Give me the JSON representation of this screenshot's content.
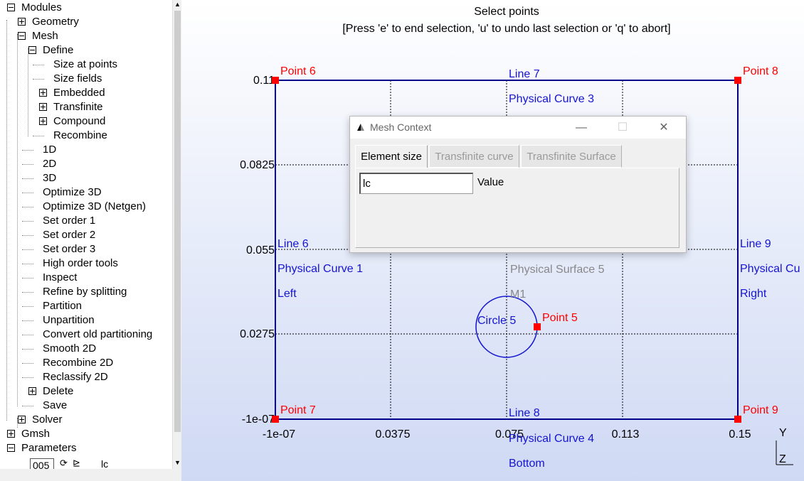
{
  "tree": {
    "items": [
      {
        "label": "Modules",
        "toggle": "minus"
      },
      {
        "label": "Geometry",
        "toggle": "plus"
      },
      {
        "label": "Mesh",
        "toggle": "minus"
      },
      {
        "label": "Define",
        "toggle": "minus"
      },
      {
        "label": "Size at points",
        "toggle": "none"
      },
      {
        "label": "Size fields",
        "toggle": "none"
      },
      {
        "label": "Embedded",
        "toggle": "plus"
      },
      {
        "label": "Transfinite",
        "toggle": "plus"
      },
      {
        "label": "Compound",
        "toggle": "plus"
      },
      {
        "label": "Recombine",
        "toggle": "none"
      },
      {
        "label": "1D",
        "toggle": "none"
      },
      {
        "label": "2D",
        "toggle": "none"
      },
      {
        "label": "3D",
        "toggle": "none"
      },
      {
        "label": "Optimize 3D",
        "toggle": "none"
      },
      {
        "label": "Optimize 3D (Netgen)",
        "toggle": "none"
      },
      {
        "label": "Set order 1",
        "toggle": "none"
      },
      {
        "label": "Set order 2",
        "toggle": "none"
      },
      {
        "label": "Set order 3",
        "toggle": "none"
      },
      {
        "label": "High order tools",
        "toggle": "none"
      },
      {
        "label": "Inspect",
        "toggle": "none"
      },
      {
        "label": "Refine by splitting",
        "toggle": "none"
      },
      {
        "label": "Partition",
        "toggle": "none"
      },
      {
        "label": "Unpartition",
        "toggle": "none"
      },
      {
        "label": "Convert old partitioning",
        "toggle": "none"
      },
      {
        "label": "Smooth 2D",
        "toggle": "none"
      },
      {
        "label": "Recombine 2D",
        "toggle": "none"
      },
      {
        "label": "Reclassify 2D",
        "toggle": "none"
      },
      {
        "label": "Delete",
        "toggle": "plus"
      },
      {
        "label": "Save",
        "toggle": "none"
      },
      {
        "label": "Solver",
        "toggle": "plus"
      },
      {
        "label": "Gmsh",
        "toggle": "plus"
      },
      {
        "label": "Parameters",
        "toggle": "minus"
      }
    ],
    "param": {
      "value": "005",
      "name": "lc"
    }
  },
  "viewport": {
    "header_line1": "Select points",
    "header_line2": "[Press 'e' to end selection, 'u' to undo last selection or 'q' to abort]",
    "axes": {
      "x_ticks": [
        "-1e-07",
        "0.0375",
        "0.075",
        "0.113",
        "0.15"
      ],
      "y_ticks": [
        "0.11",
        "0.0825",
        "0.055",
        "0.0275",
        "-1e-07"
      ]
    },
    "points": [
      {
        "label": "Point 6"
      },
      {
        "label": "Point 8"
      },
      {
        "label": "Point 7"
      },
      {
        "label": "Point 9"
      },
      {
        "label": "Point 5"
      }
    ],
    "line_labels": {
      "line7": "Line 7",
      "pc3": "Physical Curve 3",
      "line6": "Line 6",
      "pc1": "Physical Curve 1",
      "left": "Left",
      "line9": "Line 9",
      "pc_right": "Physical Cu",
      "right": "Right",
      "line8": "Line 8",
      "pc4": "Physical Curve 4",
      "bottom": "Bottom",
      "circle5": "Circle 5",
      "surface5": "Physical Surface 5",
      "m1": "M1"
    },
    "triad": {
      "y": "Y",
      "z": "Z"
    }
  },
  "dialog": {
    "title": "Mesh Context",
    "tabs": [
      "Element size",
      "Transfinite curve",
      "Transfinite Surface"
    ],
    "field_value": "lc",
    "field_label": "Value",
    "buttons": {
      "minimize": "—",
      "maximize": "☐",
      "close": "✕"
    }
  },
  "colors": {
    "line": "#00008b",
    "label_blue": "#1414d2",
    "point_red": "#ff0000",
    "gray_label": "#888888"
  }
}
